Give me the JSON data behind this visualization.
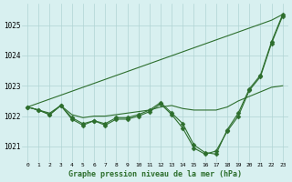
{
  "xlabel": "Graphe pression niveau de la mer (hPa)",
  "hours": [
    0,
    1,
    2,
    3,
    4,
    5,
    6,
    7,
    8,
    9,
    10,
    11,
    12,
    13,
    14,
    15,
    16,
    17,
    18,
    19,
    20,
    21,
    22,
    23
  ],
  "line_straight": [
    1022.3,
    1022.43,
    1022.56,
    1022.69,
    1022.82,
    1022.95,
    1023.08,
    1023.21,
    1023.34,
    1023.47,
    1023.6,
    1023.73,
    1023.86,
    1023.99,
    1024.12,
    1024.25,
    1024.38,
    1024.51,
    1024.64,
    1024.77,
    1024.9,
    1025.03,
    1025.16,
    1025.35
  ],
  "line_flat": [
    1022.3,
    1022.2,
    1022.1,
    1022.35,
    1022.05,
    1021.95,
    1022.0,
    1022.0,
    1022.05,
    1022.1,
    1022.15,
    1022.2,
    1022.3,
    1022.35,
    1022.25,
    1022.2,
    1022.2,
    1022.2,
    1022.3,
    1022.5,
    1022.65,
    1022.8,
    1022.95,
    1023.0
  ],
  "line_marked1": [
    1022.3,
    1022.2,
    1022.05,
    1022.35,
    1021.95,
    1021.75,
    1021.85,
    1021.75,
    1021.95,
    1021.95,
    1022.05,
    1022.2,
    1022.45,
    1022.1,
    1021.75,
    1021.05,
    1020.8,
    1020.75,
    1021.55,
    1022.1,
    1022.9,
    1023.35,
    1024.45,
    1025.35
  ],
  "line_marked2": [
    1022.3,
    1022.2,
    1022.05,
    1022.35,
    1021.9,
    1021.7,
    1021.85,
    1021.7,
    1021.9,
    1021.9,
    1022.0,
    1022.15,
    1022.4,
    1022.05,
    1021.6,
    1020.95,
    1020.75,
    1020.85,
    1021.5,
    1022.0,
    1022.85,
    1023.3,
    1024.4,
    1025.3
  ],
  "line_color": "#2d6e2d",
  "bg_color": "#d8f0f0",
  "grid_color": "#b0d4d4",
  "ylim": [
    1020.5,
    1025.7
  ],
  "yticks": [
    1021,
    1022,
    1023,
    1024,
    1025
  ],
  "marker": "D",
  "marker_size": 2.5,
  "linewidth": 0.8
}
